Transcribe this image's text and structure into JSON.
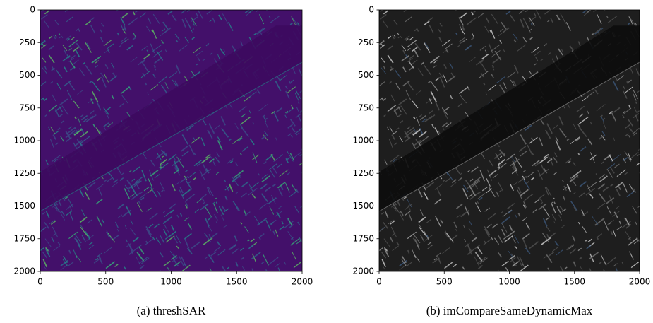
{
  "chart_data": [
    {
      "type": "image",
      "caption": "(a) threshSAR",
      "colormap": "viridis",
      "xlim": [
        0,
        2000
      ],
      "ylim": [
        2000,
        0
      ],
      "xticks": [
        0,
        500,
        1000,
        1500,
        2000
      ],
      "yticks": [
        0,
        250,
        500,
        750,
        1000,
        1250,
        1500,
        1750,
        2000
      ]
    },
    {
      "type": "image",
      "caption": "(b) imCompareSameDynamicMax",
      "colormap": "gray",
      "xlim": [
        0,
        2000
      ],
      "ylim": [
        2000,
        0
      ],
      "xticks": [
        0,
        500,
        1000,
        1500,
        2000
      ],
      "yticks": [
        0,
        250,
        500,
        750,
        1000,
        1250,
        1500,
        1750,
        2000
      ]
    }
  ]
}
